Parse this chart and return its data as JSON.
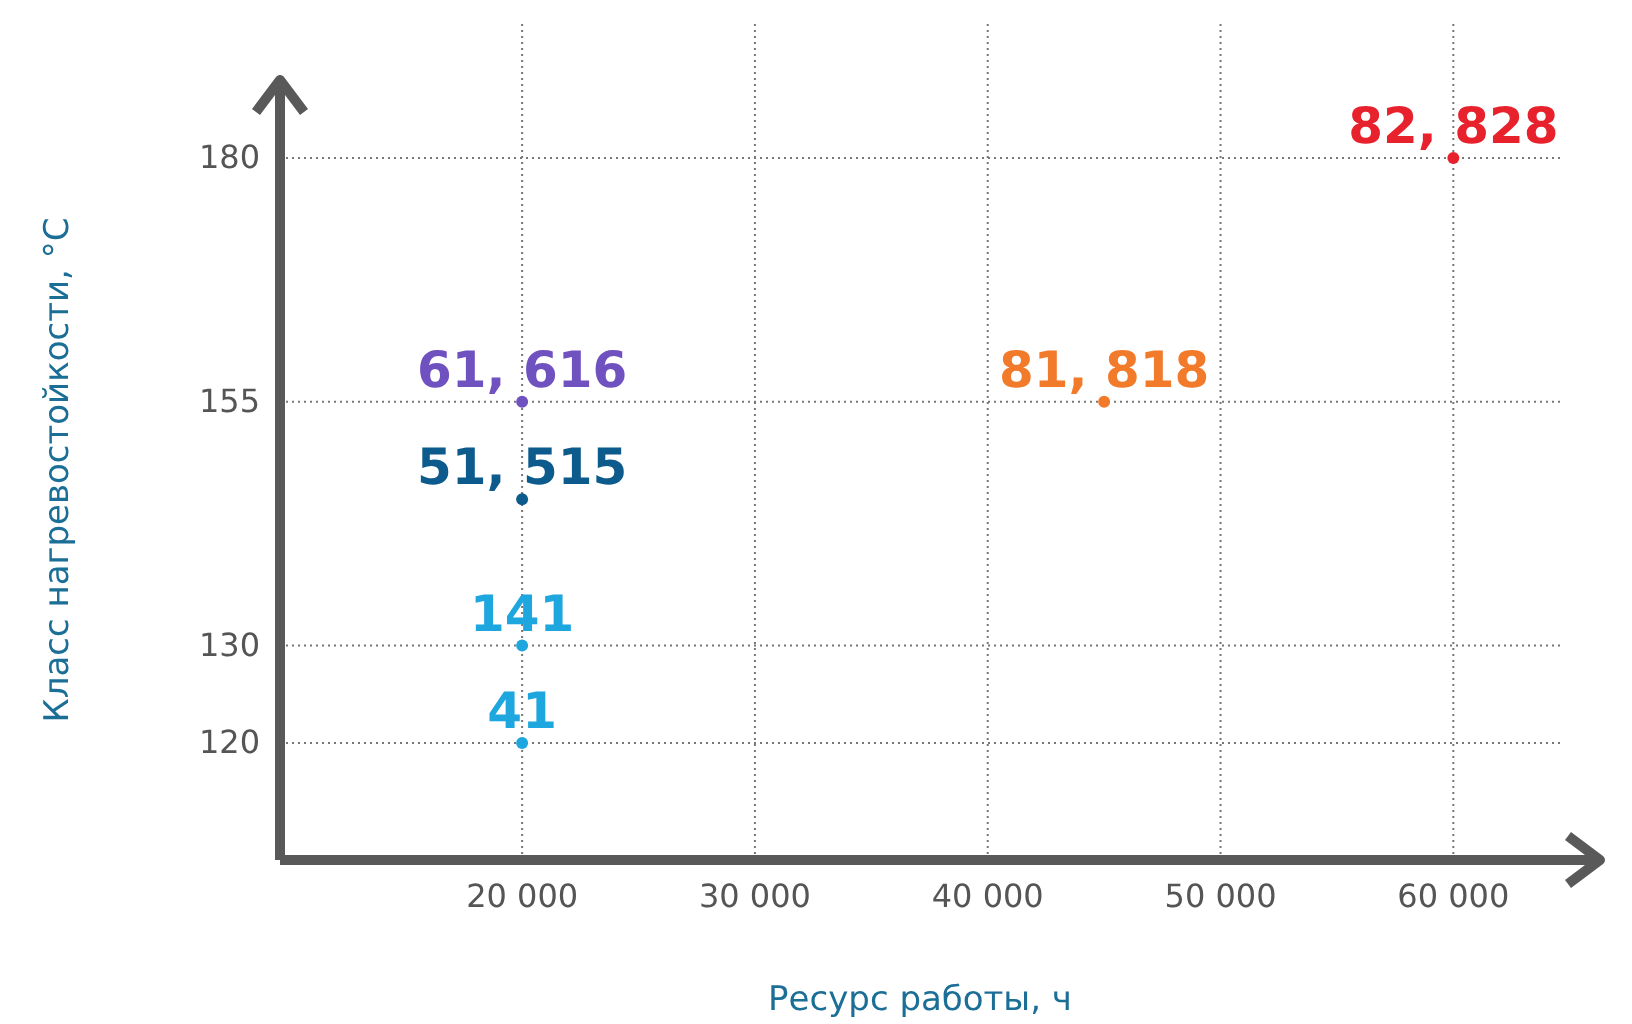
{
  "chart_data": {
    "type": "scatter",
    "xlabel": "Ресурс работы, ч",
    "ylabel": "Класс нагревостойкости, °C",
    "xlim": [
      9600,
      66300
    ],
    "ylim": [
      108,
      188
    ],
    "xticks": [
      {
        "value": 20000,
        "label": "20 000"
      },
      {
        "value": 30000,
        "label": "30 000"
      },
      {
        "value": 40000,
        "label": "40 000"
      },
      {
        "value": 50000,
        "label": "50 000"
      },
      {
        "value": 60000,
        "label": "60 000"
      }
    ],
    "yticks": [
      120,
      130,
      155,
      180
    ],
    "grid": true,
    "legend": false,
    "marker": "circle",
    "series": [
      {
        "name": "61, 616",
        "color": "#6f52c0",
        "x": [
          20000
        ],
        "values": [
          155
        ]
      },
      {
        "name": "51, 515",
        "color": "#0d5a8c",
        "x": [
          20000
        ],
        "values": [
          145
        ]
      },
      {
        "name": "141",
        "color": "#1ea6de",
        "x": [
          20000
        ],
        "values": [
          130
        ]
      },
      {
        "name": "41",
        "color": "#1ea6de",
        "x": [
          20000
        ],
        "values": [
          120
        ]
      },
      {
        "name": "81, 818",
        "color": "#f27b2b",
        "x": [
          45000
        ],
        "values": [
          155
        ]
      },
      {
        "name": "82, 828",
        "color": "#e8222c",
        "x": [
          60000
        ],
        "values": [
          180
        ]
      }
    ]
  }
}
